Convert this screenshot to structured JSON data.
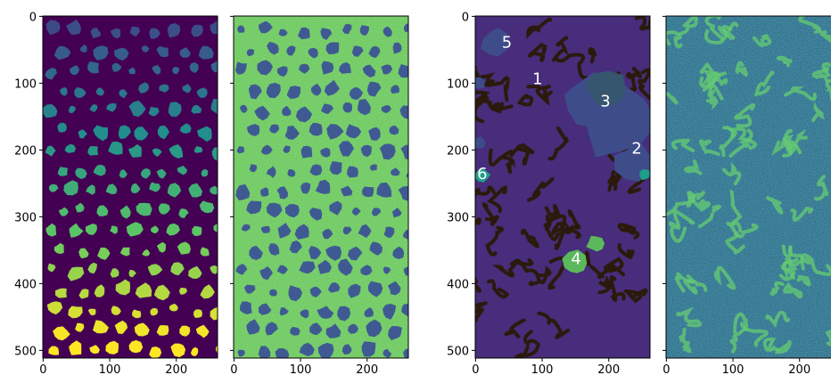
{
  "chart_data": [
    {
      "type": "image",
      "xlim": [
        -0.5,
        262
      ],
      "ylim": [
        511.5,
        -0.5
      ],
      "xticks": [
        0,
        100,
        200
      ],
      "yticks": [
        0,
        100,
        200,
        300,
        400,
        500
      ],
      "ytick_labels": true,
      "colormap": "viridis",
      "style": "labels"
    },
    {
      "type": "image",
      "xlim": [
        -0.5,
        262
      ],
      "ylim": [
        511.5,
        -0.5
      ],
      "xticks": [
        0,
        100,
        200
      ],
      "yticks": [
        0,
        100,
        200,
        300,
        400,
        500
      ],
      "ytick_labels": false,
      "colormap": "viridis",
      "style": "noise-spots"
    },
    {
      "type": "image",
      "xlim": [
        -0.5,
        262
      ],
      "ylim": [
        511.5,
        -0.5
      ],
      "xticks": [
        0,
        100,
        200
      ],
      "yticks": [
        0,
        100,
        200,
        300,
        400,
        500
      ],
      "ytick_labels": true,
      "colormap": "viridis",
      "style": "regions",
      "annotations": [
        {
          "text": "5",
          "x": 47,
          "y": 40
        },
        {
          "text": "1",
          "x": 93,
          "y": 95
        },
        {
          "text": "3",
          "x": 195,
          "y": 128
        },
        {
          "text": "2",
          "x": 242,
          "y": 199
        },
        {
          "text": "6",
          "x": 10,
          "y": 237
        },
        {
          "text": "4",
          "x": 151,
          "y": 364
        }
      ]
    },
    {
      "type": "image",
      "xlim": [
        -0.5,
        262
      ],
      "ylim": [
        511.5,
        -0.5
      ],
      "xticks": [
        0,
        100,
        200
      ],
      "yticks": [
        0,
        100,
        200,
        300,
        400,
        500
      ],
      "ytick_labels": false,
      "colormap": "viridis",
      "style": "noise-edges"
    }
  ]
}
